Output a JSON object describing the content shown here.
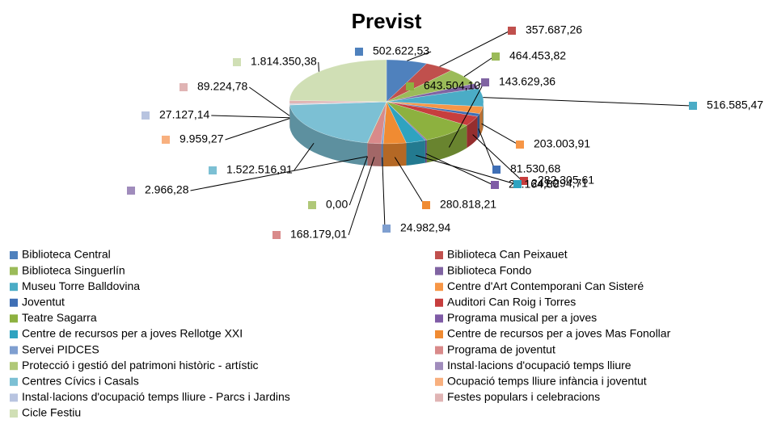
{
  "chart_data": {
    "type": "pie",
    "title": "Previst",
    "categories": [
      "Biblioteca Central",
      "Biblioteca Can Peixauet",
      "Biblioteca Singuerlín",
      "Biblioteca Fondo",
      "Museu Torre Balldovina",
      "Centre d'Art Contemporani Can Sisteré",
      "Joventut",
      "Auditori Can Roig i Torres",
      "Teatre Sagarra",
      "Programa musical per a joves",
      "Centre de recursos per a joves Rellotge XXI",
      "Centre de recursos per a joves Mas Fonollar",
      "Servei PIDCES",
      "Programa de joventut",
      "Protecció i gestió del patrimoni històric - artístic",
      "Instal·lacions d'ocupació temps lliure",
      "Centres Cívics i Casals",
      "Ocupació temps lliure infància i joventut",
      "Instal·lacions d'ocupació temps lliure - Parcs i Jardins",
      "Festes populars i celebracions",
      "Cicle Festiu"
    ],
    "values": [
      502622.53,
      357687.26,
      464453.82,
      143629.36,
      516585.47,
      203003.91,
      81530.68,
      282305.61,
      643504.1,
      20164.8,
      241294.71,
      280818.21,
      24982.94,
      168179.01,
      0,
      2966.28,
      1522516.91,
      9959.27,
      27127.14,
      89224.78,
      1814350.38
    ],
    "value_labels": [
      "502.622,53",
      "357.687,26",
      "464.453,82",
      "143.629,36",
      "516.585,47",
      "203.003,91",
      "81.530,68",
      "282.305,61",
      "643.504,10",
      "20.164,80",
      "241.294,71",
      "280.818,21",
      "24.982,94",
      "168.179,01",
      "0,00",
      "2.966,28",
      "1.522.516,91",
      "9.959,27",
      "27.127,14",
      "89.224,78",
      "1.814.350,38"
    ],
    "colors": [
      "#4f81bd",
      "#c0504d",
      "#9bbb59",
      "#8064a2",
      "#4bacc6",
      "#f79646",
      "#3f6fb5",
      "#c73e3e",
      "#8db13f",
      "#7f5ba6",
      "#2fa3c0",
      "#f08b32",
      "#7f9fd0",
      "#d98a8a",
      "#b0c878",
      "#a08cbc",
      "#7cc0d4",
      "#f8b07f",
      "#b8c4e0",
      "#e0b4b4",
      "#d0dfb5"
    ]
  }
}
